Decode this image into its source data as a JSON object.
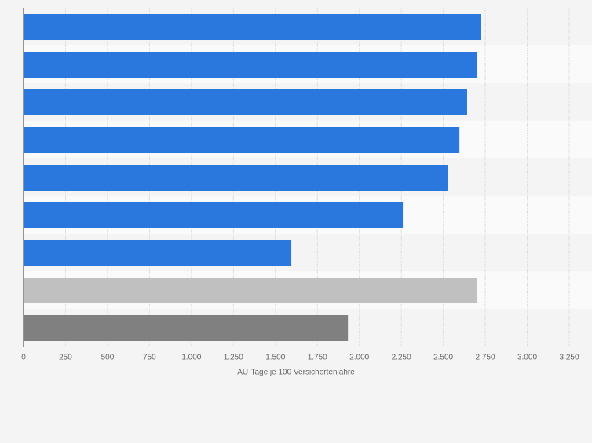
{
  "chart_data": {
    "type": "bar",
    "orientation": "horizontal",
    "x_label": "AU-Tage je 100 Versichertenjahre",
    "categories": [
      null,
      null,
      null,
      null,
      null,
      null,
      null,
      null,
      null
    ],
    "values": [
      2722,
      2703,
      2642,
      2596,
      2526,
      2259,
      1595,
      2703,
      1932
    ],
    "colors": [
      "#2a77dd",
      "#2a77dd",
      "#2a77dd",
      "#2a77dd",
      "#2a77dd",
      "#2a77dd",
      "#2a77dd",
      "#c0c0c0",
      "#808080"
    ],
    "xlim": [
      0,
      3250
    ],
    "xticks": [
      0,
      250,
      500,
      750,
      {
        "value": 1000,
        "label": "1.000"
      },
      {
        "value": 1250,
        "label": "1.250"
      },
      {
        "value": 1500,
        "label": "1.500"
      },
      {
        "value": 1750,
        "label": "1.750"
      },
      {
        "value": 2000,
        "label": "2.000"
      },
      {
        "value": 2250,
        "label": "2.250"
      },
      {
        "value": 2500,
        "label": "2.500"
      },
      {
        "value": 2750,
        "label": "2.750"
      },
      {
        "value": 3000,
        "label": "3.000"
      },
      {
        "value": 3250,
        "label": "3.250"
      }
    ],
    "grid": true
  }
}
